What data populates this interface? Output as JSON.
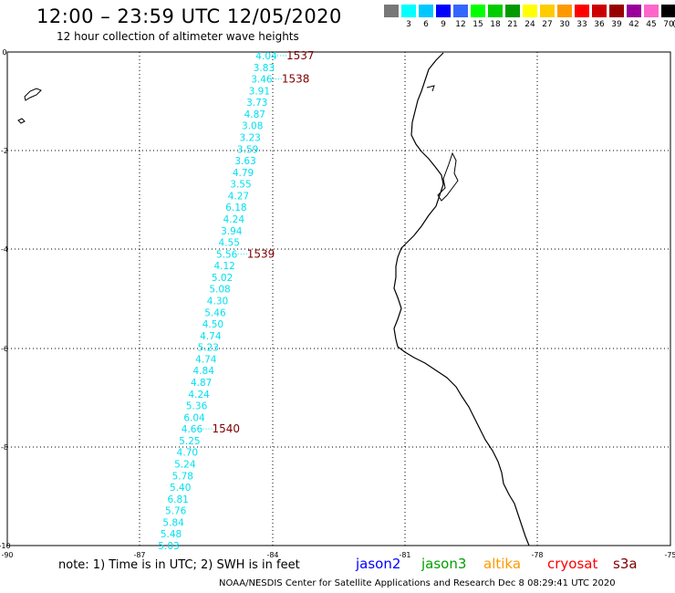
{
  "header": {
    "title": "12:00 – 23:59 UTC 12/05/2020",
    "subtitle": "12 hour collection of altimeter wave heights"
  },
  "legend": {
    "unit": "(ft)",
    "bins": [
      {
        "color": "#777777",
        "label": ""
      },
      {
        "color": "#00ffff",
        "label": "3"
      },
      {
        "color": "#00c8ff",
        "label": "6"
      },
      {
        "color": "#0000ff",
        "label": "9"
      },
      {
        "color": "#3366ff",
        "label": "12"
      },
      {
        "color": "#00ff00",
        "label": "15"
      },
      {
        "color": "#00cc00",
        "label": "18"
      },
      {
        "color": "#009900",
        "label": "21"
      },
      {
        "color": "#ffff00",
        "label": "24"
      },
      {
        "color": "#ffcc00",
        "label": "27"
      },
      {
        "color": "#ff9900",
        "label": "30"
      },
      {
        "color": "#ff0000",
        "label": "33"
      },
      {
        "color": "#cc0000",
        "label": "36"
      },
      {
        "color": "#990000",
        "label": "39"
      },
      {
        "color": "#990099",
        "label": "42"
      },
      {
        "color": "#ff66cc",
        "label": "45"
      },
      {
        "color": "#000000",
        "label": "70"
      }
    ]
  },
  "axes": {
    "x_ticks": [
      "-90",
      "-87",
      "-84",
      "-81",
      "-78",
      "-75"
    ],
    "y_ticks": [
      "0",
      "-2",
      "-4",
      "-6",
      "-8",
      "-10"
    ]
  },
  "track": {
    "color": "#00e0f0",
    "time_color": "#800000",
    "heights": [
      "4.04",
      "3.83",
      "3.46",
      "3.91",
      "3.73",
      "4.87",
      "3.08",
      "3.23",
      "3.59",
      "3.63",
      "4.79",
      "3.55",
      "4.27",
      "6.18",
      "4.24",
      "3.94",
      "4.55",
      "5.56",
      "4.12",
      "5.02",
      "5.08",
      "4.30",
      "5.46",
      "4.50",
      "4.74",
      "5.23",
      "4.74",
      "4.84",
      "4.87",
      "4.24",
      "5.36",
      "6.04",
      "4.66",
      "5.25",
      "4.70",
      "5.24",
      "5.78",
      "5.40",
      "6.81",
      "5.76",
      "5.84",
      "5.48",
      "5.03"
    ],
    "times": [
      {
        "label": "1537",
        "index": 0
      },
      {
        "label": "1538",
        "index": 2
      },
      {
        "label": "1539",
        "index": 17
      },
      {
        "label": "1540",
        "index": 32
      }
    ]
  },
  "footer": {
    "note": "note:  1) Time is in UTC;  2) SWH is in feet",
    "satellites": [
      {
        "name": "jason2",
        "color": "#0000ff"
      },
      {
        "name": "jason3",
        "color": "#00a000"
      },
      {
        "name": "altika",
        "color": "#ff9900"
      },
      {
        "name": "cryosat",
        "color": "#ff0000"
      },
      {
        "name": "s3a",
        "color": "#800000"
      }
    ],
    "credit": "NOAA/NESDIS Center for Satellite Applications and Research     Dec  8 08:29:41 UTC 2020"
  }
}
